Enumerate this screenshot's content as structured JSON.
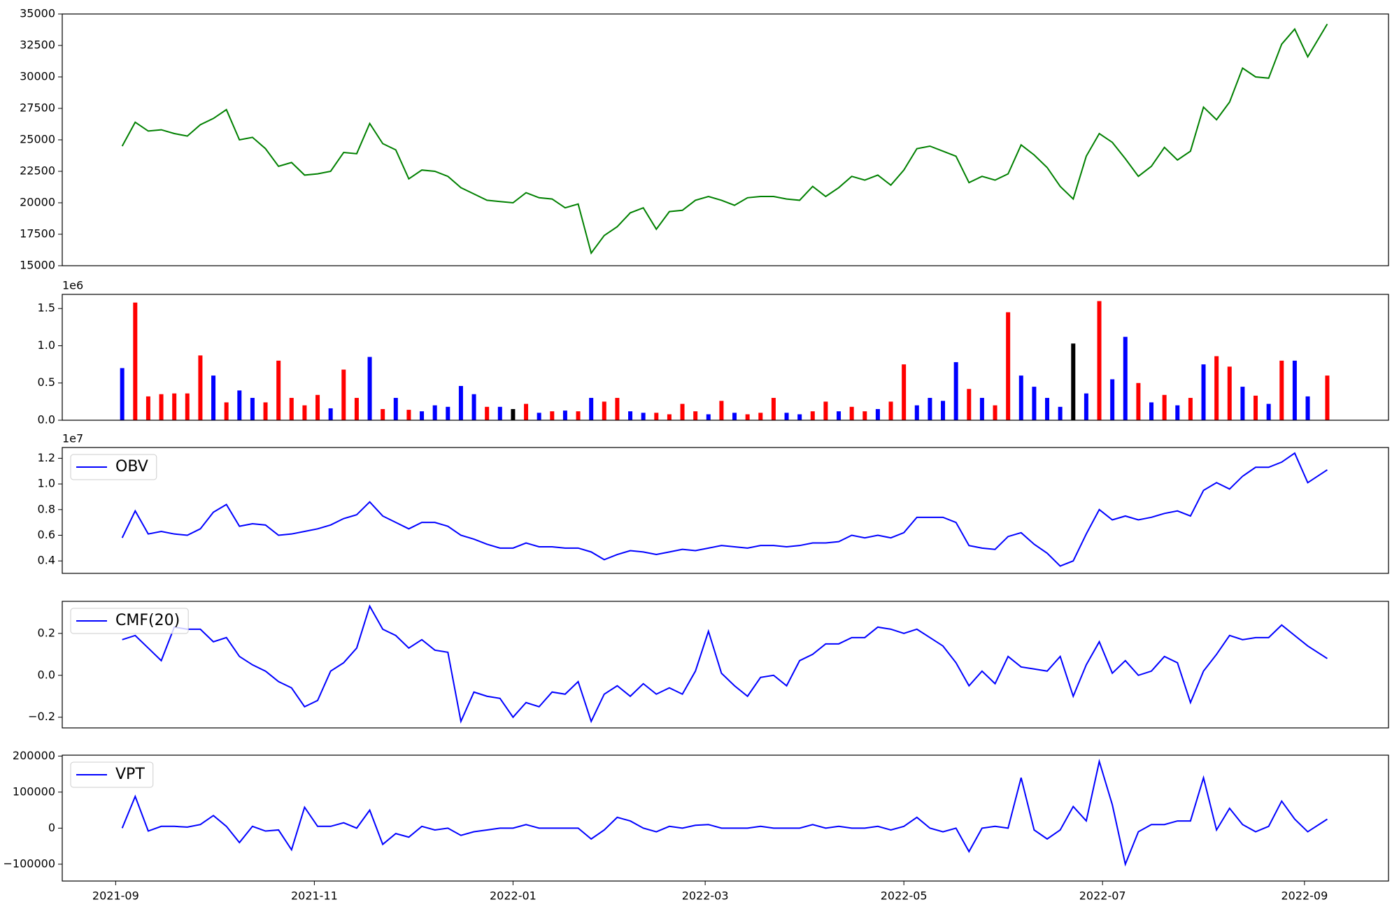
{
  "chart_data": [
    {
      "type": "line",
      "x": [
        2,
        6,
        10,
        14,
        18,
        22,
        26,
        30,
        34,
        38,
        42,
        46,
        50,
        54,
        58,
        62,
        66,
        70,
        74,
        78,
        82,
        86,
        90,
        94,
        98,
        102,
        106,
        110,
        114,
        118,
        122,
        126,
        130,
        134,
        138,
        142,
        146,
        150,
        154,
        158,
        162,
        166,
        170,
        174,
        178,
        182,
        186,
        190,
        194,
        198,
        202,
        206,
        210,
        214,
        218,
        222,
        226,
        230,
        234,
        238,
        242,
        246,
        250,
        254,
        258,
        262,
        266,
        270,
        274,
        278,
        282,
        286,
        290,
        294,
        298,
        302,
        306,
        310,
        314,
        318,
        322,
        326,
        330,
        334,
        338,
        342,
        346,
        350,
        354,
        358,
        362,
        366,
        372
      ],
      "values": [
        24500,
        26400,
        25700,
        25800,
        25500,
        25300,
        26200,
        26700,
        27400,
        25000,
        25200,
        24300,
        22900,
        23200,
        22200,
        22300,
        22500,
        24000,
        23900,
        26300,
        24700,
        24200,
        21900,
        22600,
        22500,
        22100,
        21200,
        20700,
        20200,
        20100,
        20000,
        20800,
        20400,
        20300,
        19600,
        19900,
        16000,
        17400,
        18100,
        19200,
        19600,
        17900,
        19300,
        19400,
        20200,
        20500,
        20200,
        19800,
        20400,
        20500,
        20500,
        20300,
        20200,
        21300,
        20500,
        21200,
        22100,
        21800,
        22200,
        21400,
        22600,
        24300,
        24500,
        24100,
        23700,
        21600,
        22100,
        21800,
        22300,
        24600,
        23800,
        22800,
        21300,
        20300,
        23700,
        25500,
        24800,
        23500,
        22100,
        22900,
        24400,
        23400,
        24100,
        27600,
        26600,
        28000,
        30700,
        30000,
        29900,
        32600,
        33800,
        31600,
        34200
      ],
      "color": "green",
      "xlim": [
        -16.4,
        390.8
      ],
      "ylim": [
        15000,
        35000
      ],
      "yticks": [
        15000,
        17500,
        20000,
        22500,
        25000,
        27500,
        30000,
        32500,
        35000
      ]
    },
    {
      "type": "bar",
      "offset_label": "1e6",
      "x": [
        2,
        6,
        10,
        14,
        18,
        22,
        26,
        30,
        34,
        38,
        42,
        46,
        50,
        54,
        58,
        62,
        66,
        70,
        74,
        78,
        82,
        86,
        90,
        94,
        98,
        102,
        106,
        110,
        114,
        118,
        122,
        126,
        130,
        134,
        138,
        142,
        146,
        150,
        154,
        158,
        162,
        166,
        170,
        174,
        178,
        182,
        186,
        190,
        194,
        198,
        202,
        206,
        210,
        214,
        218,
        222,
        226,
        230,
        234,
        238,
        242,
        246,
        250,
        254,
        258,
        262,
        266,
        270,
        274,
        278,
        282,
        286,
        290,
        294,
        298,
        302,
        306,
        310,
        314,
        318,
        322,
        326,
        330,
        334,
        338,
        342,
        346,
        350,
        354,
        358,
        362,
        366,
        372
      ],
      "values": [
        700000,
        1580000,
        320000,
        350000,
        360000,
        360000,
        870000,
        600000,
        240000,
        400000,
        300000,
        240000,
        800000,
        300000,
        200000,
        340000,
        160000,
        680000,
        300000,
        850000,
        150000,
        300000,
        140000,
        120000,
        200000,
        180000,
        460000,
        350000,
        180000,
        180000,
        150000,
        220000,
        100000,
        120000,
        130000,
        120000,
        300000,
        250000,
        300000,
        120000,
        100000,
        100000,
        80000,
        220000,
        120000,
        80000,
        260000,
        100000,
        80000,
        100000,
        300000,
        100000,
        80000,
        120000,
        250000,
        120000,
        180000,
        120000,
        150000,
        250000,
        750000,
        200000,
        300000,
        260000,
        780000,
        420000,
        300000,
        200000,
        1450000,
        600000,
        450000,
        300000,
        180000,
        1030000,
        360000,
        1600000,
        550000,
        1120000,
        500000,
        240000,
        340000,
        200000,
        300000,
        750000,
        860000,
        720000,
        450000,
        330000,
        220000,
        800000,
        800000,
        320000,
        600000
      ],
      "colors": [
        "blue",
        "red",
        "red",
        "red",
        "red",
        "red",
        "red",
        "blue",
        "red",
        "blue",
        "blue",
        "red",
        "red",
        "red",
        "red",
        "red",
        "blue",
        "red",
        "red",
        "blue",
        "red",
        "blue",
        "red",
        "blue",
        "blue",
        "blue",
        "blue",
        "blue",
        "red",
        "blue",
        "black",
        "red",
        "blue",
        "red",
        "blue",
        "red",
        "blue",
        "red",
        "red",
        "blue",
        "blue",
        "red",
        "red",
        "red",
        "red",
        "blue",
        "red",
        "blue",
        "red",
        "red",
        "red",
        "blue",
        "blue",
        "red",
        "red",
        "blue",
        "red",
        "red",
        "blue",
        "red",
        "red",
        "blue",
        "blue",
        "blue",
        "blue",
        "red",
        "blue",
        "red",
        "red",
        "blue",
        "blue",
        "blue",
        "blue",
        "black",
        "blue",
        "red",
        "blue",
        "blue",
        "red",
        "blue",
        "red",
        "blue",
        "red",
        "blue",
        "red",
        "red",
        "blue",
        "red",
        "blue",
        "red",
        "blue",
        "blue",
        "red"
      ],
      "xlim": [
        -16.4,
        390.8
      ],
      "ylim": [
        0,
        1690000
      ],
      "yticks": [
        {
          "value": 0,
          "label": "0.0"
        },
        {
          "value": 500000,
          "label": "0.5"
        },
        {
          "value": 1000000,
          "label": "1.0"
        },
        {
          "value": 1500000,
          "label": "1.5"
        }
      ]
    },
    {
      "type": "line",
      "offset_label": "1e7",
      "legend": "upper left",
      "x": [
        2,
        6,
        10,
        14,
        18,
        22,
        26,
        30,
        34,
        38,
        42,
        46,
        50,
        54,
        58,
        62,
        66,
        70,
        74,
        78,
        82,
        86,
        90,
        94,
        98,
        102,
        106,
        110,
        114,
        118,
        122,
        126,
        130,
        134,
        138,
        142,
        146,
        150,
        154,
        158,
        162,
        166,
        170,
        174,
        178,
        182,
        186,
        190,
        194,
        198,
        202,
        206,
        210,
        214,
        218,
        222,
        226,
        230,
        234,
        238,
        242,
        246,
        250,
        254,
        258,
        262,
        266,
        270,
        274,
        278,
        282,
        286,
        290,
        294,
        298,
        302,
        306,
        310,
        314,
        318,
        322,
        326,
        330,
        334,
        338,
        342,
        346,
        350,
        354,
        358,
        362,
        366,
        372
      ],
      "series": [
        {
          "name": "OBV",
          "color": "blue",
          "values": [
            5800000,
            7900000,
            6100000,
            6300000,
            6100000,
            6000000,
            6500000,
            7800000,
            8400000,
            6700000,
            6900000,
            6800000,
            6000000,
            6100000,
            6300000,
            6500000,
            6800000,
            7300000,
            7600000,
            8600000,
            7500000,
            7000000,
            6500000,
            7000000,
            7000000,
            6700000,
            6000000,
            5700000,
            5300000,
            5000000,
            5000000,
            5400000,
            5100000,
            5100000,
            5000000,
            5000000,
            4700000,
            4100000,
            4500000,
            4800000,
            4700000,
            4500000,
            4700000,
            4900000,
            4800000,
            5000000,
            5200000,
            5100000,
            5000000,
            5200000,
            5200000,
            5100000,
            5200000,
            5400000,
            5400000,
            5500000,
            6000000,
            5800000,
            6000000,
            5800000,
            6200000,
            7400000,
            7400000,
            7400000,
            7000000,
            5200000,
            5000000,
            4900000,
            5900000,
            6200000,
            5300000,
            4600000,
            3600000,
            4000000,
            6100000,
            8000000,
            7200000,
            7500000,
            7200000,
            7400000,
            7700000,
            7900000,
            7500000,
            9500000,
            10100000,
            9600000,
            10600000,
            11300000,
            11300000,
            11700000,
            12400000,
            10100000,
            11100000
          ]
        }
      ],
      "xlim": [
        -16.4,
        390.8
      ],
      "ylim": [
        3030000,
        12840000
      ],
      "yticks": [
        {
          "value": 4000000,
          "label": "0.4"
        },
        {
          "value": 6000000,
          "label": "0.6"
        },
        {
          "value": 8000000,
          "label": "0.8"
        },
        {
          "value": 10000000,
          "label": "1.0"
        },
        {
          "value": 12000000,
          "label": "1.2"
        }
      ]
    },
    {
      "type": "line",
      "legend": "upper left",
      "x": [
        2,
        6,
        10,
        14,
        18,
        22,
        26,
        30,
        34,
        38,
        42,
        46,
        50,
        54,
        58,
        62,
        66,
        70,
        74,
        78,
        82,
        86,
        90,
        94,
        98,
        102,
        106,
        110,
        114,
        118,
        122,
        126,
        130,
        134,
        138,
        142,
        146,
        150,
        154,
        158,
        162,
        166,
        170,
        174,
        178,
        182,
        186,
        190,
        194,
        198,
        202,
        206,
        210,
        214,
        218,
        222,
        226,
        230,
        234,
        238,
        242,
        246,
        250,
        254,
        258,
        262,
        266,
        270,
        274,
        278,
        282,
        286,
        290,
        294,
        298,
        302,
        306,
        310,
        314,
        318,
        322,
        326,
        330,
        334,
        338,
        342,
        346,
        350,
        354,
        358,
        362,
        366,
        372
      ],
      "series": [
        {
          "name": "CMF(20)",
          "color": "blue",
          "values": [
            0.17,
            0.19,
            0.13,
            0.07,
            0.23,
            0.22,
            0.22,
            0.16,
            0.18,
            0.09,
            0.05,
            0.02,
            -0.03,
            -0.06,
            -0.15,
            -0.12,
            0.02,
            0.06,
            0.13,
            0.33,
            0.22,
            0.19,
            0.13,
            0.17,
            0.12,
            0.11,
            -0.22,
            -0.08,
            -0.1,
            -0.11,
            -0.2,
            -0.13,
            -0.15,
            -0.08,
            -0.09,
            -0.03,
            -0.22,
            -0.09,
            -0.05,
            -0.1,
            -0.04,
            -0.09,
            -0.06,
            -0.09,
            0.02,
            0.21,
            0.01,
            -0.05,
            -0.1,
            -0.01,
            0,
            -0.05,
            0.07,
            0.1,
            0.15,
            0.15,
            0.18,
            0.18,
            0.23,
            0.22,
            0.2,
            0.22,
            0.18,
            0.14,
            0.06,
            -0.05,
            0.02,
            -0.04,
            0.09,
            0.04,
            0.03,
            0.02,
            0.09,
            -0.1,
            0.05,
            0.16,
            0.01,
            0.07,
            0,
            0.02,
            0.09,
            0.06,
            -0.13,
            0.02,
            0.1,
            0.19,
            0.17,
            0.18,
            0.18,
            0.24,
            0.19,
            0.14,
            0.08
          ]
        }
      ],
      "xlim": [
        -16.4,
        390.8
      ],
      "ylim": [
        -0.251,
        0.353
      ],
      "yticks": [
        {
          "value": -0.2,
          "label": "−0.2"
        },
        {
          "value": 0,
          "label": "0.0"
        },
        0.2
      ]
    },
    {
      "type": "line",
      "legend": "upper left",
      "x": [
        2,
        6,
        10,
        14,
        18,
        22,
        26,
        30,
        34,
        38,
        42,
        46,
        50,
        54,
        58,
        62,
        66,
        70,
        74,
        78,
        82,
        86,
        90,
        94,
        98,
        102,
        106,
        110,
        114,
        118,
        122,
        126,
        130,
        134,
        138,
        142,
        146,
        150,
        154,
        158,
        162,
        166,
        170,
        174,
        178,
        182,
        186,
        190,
        194,
        198,
        202,
        206,
        210,
        214,
        218,
        222,
        226,
        230,
        234,
        238,
        242,
        246,
        250,
        254,
        258,
        262,
        266,
        270,
        274,
        278,
        282,
        286,
        290,
        294,
        298,
        302,
        306,
        310,
        314,
        318,
        322,
        326,
        330,
        334,
        338,
        342,
        346,
        350,
        354,
        358,
        362,
        366,
        372
      ],
      "series": [
        {
          "name": "VPT",
          "color": "blue",
          "values": [
            0,
            88000,
            -8000,
            5000,
            5000,
            3000,
            10000,
            35000,
            5000,
            -40000,
            5000,
            -8000,
            -5000,
            -60000,
            58000,
            5000,
            5000,
            15000,
            0,
            50000,
            -45000,
            -15000,
            -25000,
            5000,
            -5000,
            0,
            -20000,
            -10000,
            -5000,
            0,
            0,
            10000,
            0,
            0,
            0,
            0,
            -30000,
            -5000,
            30000,
            20000,
            0,
            -10000,
            5000,
            0,
            8000,
            10000,
            0,
            0,
            0,
            5000,
            0,
            0,
            0,
            10000,
            0,
            5000,
            0,
            0,
            5000,
            -5000,
            5000,
            30000,
            0,
            -10000,
            0,
            -65000,
            0,
            5000,
            0,
            140000,
            -5000,
            -30000,
            -5000,
            60000,
            20000,
            185000,
            65000,
            -100000,
            -10000,
            10000,
            10000,
            20000,
            20000,
            140000,
            -5000,
            55000,
            10000,
            -10000,
            5000,
            75000,
            25000,
            -10000,
            25000
          ]
        }
      ],
      "xlim": [
        -16.4,
        390.8
      ],
      "ylim": [
        -146700,
        202500
      ],
      "yticks": [
        {
          "value": -100000,
          "label": "−100000"
        },
        0,
        100000,
        200000
      ],
      "xticks": [
        {
          "value": 0,
          "label": "2021-09"
        },
        {
          "value": 61,
          "label": "2021-11"
        },
        {
          "value": 122,
          "label": "2022-01"
        },
        {
          "value": 181,
          "label": "2022-03"
        },
        {
          "value": 242,
          "label": "2022-05"
        },
        {
          "value": 303,
          "label": "2022-07"
        },
        {
          "value": 365,
          "label": "2022-09"
        }
      ]
    }
  ]
}
